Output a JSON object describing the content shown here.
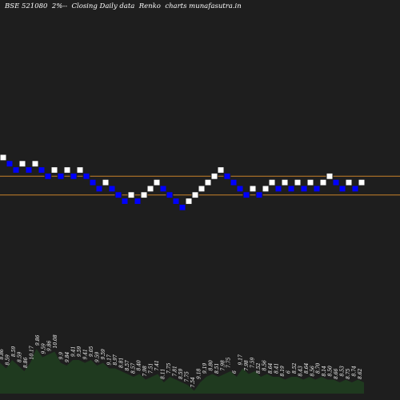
{
  "header": {
    "symbol": "BSE 521080",
    "box_size": "2%--",
    "description": "Closing Daily data  Renko  charts munafasutra.in"
  },
  "chart_data": {
    "type": "renko",
    "title": "BSE 521080  2%--  Closing Daily data  Renko  charts munafasutra.in",
    "colors": {
      "background": "#1e1e1e",
      "up_brick": "#ffffff",
      "down_brick": "#0000ff",
      "level_line": "#c8822a",
      "volume": "#1f3a1f"
    },
    "bricks": [
      {
        "step": 0,
        "dir": "up"
      },
      {
        "step": 1,
        "dir": "down"
      },
      {
        "step": 2,
        "dir": "down"
      },
      {
        "step": 1,
        "dir": "up"
      },
      {
        "step": 2,
        "dir": "down"
      },
      {
        "step": 1,
        "dir": "up"
      },
      {
        "step": 2,
        "dir": "down"
      },
      {
        "step": 3,
        "dir": "down"
      },
      {
        "step": 2,
        "dir": "up"
      },
      {
        "step": 3,
        "dir": "down"
      },
      {
        "step": 2,
        "dir": "up"
      },
      {
        "step": 3,
        "dir": "down"
      },
      {
        "step": 2,
        "dir": "up"
      },
      {
        "step": 3,
        "dir": "down"
      },
      {
        "step": 4,
        "dir": "down"
      },
      {
        "step": 5,
        "dir": "down"
      },
      {
        "step": 4,
        "dir": "up"
      },
      {
        "step": 5,
        "dir": "down"
      },
      {
        "step": 6,
        "dir": "down"
      },
      {
        "step": 7,
        "dir": "down"
      },
      {
        "step": 6,
        "dir": "up"
      },
      {
        "step": 7,
        "dir": "down"
      },
      {
        "step": 6,
        "dir": "up"
      },
      {
        "step": 5,
        "dir": "up"
      },
      {
        "step": 4,
        "dir": "up"
      },
      {
        "step": 5,
        "dir": "down"
      },
      {
        "step": 6,
        "dir": "down"
      },
      {
        "step": 7,
        "dir": "down"
      },
      {
        "step": 8,
        "dir": "down"
      },
      {
        "step": 7,
        "dir": "up"
      },
      {
        "step": 6,
        "dir": "up"
      },
      {
        "step": 5,
        "dir": "up"
      },
      {
        "step": 4,
        "dir": "up"
      },
      {
        "step": 3,
        "dir": "up"
      },
      {
        "step": 2,
        "dir": "up"
      },
      {
        "step": 3,
        "dir": "down"
      },
      {
        "step": 4,
        "dir": "down"
      },
      {
        "step": 5,
        "dir": "down"
      },
      {
        "step": 6,
        "dir": "down"
      },
      {
        "step": 5,
        "dir": "up"
      },
      {
        "step": 6,
        "dir": "down"
      },
      {
        "step": 5,
        "dir": "up"
      },
      {
        "step": 4,
        "dir": "up"
      },
      {
        "step": 5,
        "dir": "down"
      },
      {
        "step": 4,
        "dir": "up"
      },
      {
        "step": 5,
        "dir": "down"
      },
      {
        "step": 4,
        "dir": "up"
      },
      {
        "step": 5,
        "dir": "down"
      },
      {
        "step": 4,
        "dir": "up"
      },
      {
        "step": 5,
        "dir": "down"
      },
      {
        "step": 4,
        "dir": "up"
      },
      {
        "step": 3,
        "dir": "up"
      },
      {
        "step": 4,
        "dir": "down"
      },
      {
        "step": 5,
        "dir": "down"
      },
      {
        "step": 4,
        "dir": "up"
      },
      {
        "step": 5,
        "dir": "down"
      },
      {
        "step": 4,
        "dir": "up"
      }
    ],
    "levels_step": [
      3.5,
      6.5
    ],
    "volume": [
      0.55,
      0.45,
      0.6,
      0.5,
      0.4,
      0.55,
      0.8,
      0.65,
      0.7,
      0.75,
      0.55,
      0.5,
      0.6,
      0.6,
      0.55,
      0.6,
      0.5,
      0.55,
      0.45,
      0.45,
      0.4,
      0.35,
      0.3,
      0.35,
      0.25,
      0.3,
      0.35,
      0.2,
      0.3,
      0.25,
      0.2,
      0.15,
      0.05,
      0.2,
      0.3,
      0.35,
      0.3,
      0.35,
      0.4,
      0.3,
      0.45,
      0.35,
      0.4,
      0.3,
      0.35,
      0.3,
      0.3,
      0.25,
      0.3,
      0.3,
      0.25,
      0.3,
      0.25,
      0.3,
      0.25,
      0.25,
      0.2,
      0.25,
      0.2,
      0.25,
      0.2
    ],
    "volume_labels": [
      "8.86",
      "8.59",
      "8.59",
      "8.59",
      "8.86",
      "10.17",
      "9.86",
      "9.59",
      "9.86",
      "10.08",
      "9.9",
      "9.84",
      "9.41",
      "9.59",
      "9.41",
      "9.05",
      "9.59",
      "9.59",
      "9.17",
      "8.97",
      "8.81",
      "8.57",
      "8.57",
      "8.40",
      "7.98",
      "7.51",
      "7.41",
      "8.11",
      "7.75",
      "7.81",
      "8.59",
      "7.75",
      "7.54",
      "9.18",
      "9.19",
      "8.80",
      "8.51",
      "7.98",
      "7.75",
      "6",
      "9.17",
      "7.98",
      "7.59",
      "8.52",
      "8.56",
      "8.64",
      "8.41",
      "8.19",
      "6",
      "8.52",
      "8.43",
      "8.64",
      "8.56",
      "8.70",
      "8.14",
      "8.50",
      "8.66",
      "8.53",
      "8.75",
      "8.74",
      "8.62"
    ]
  }
}
